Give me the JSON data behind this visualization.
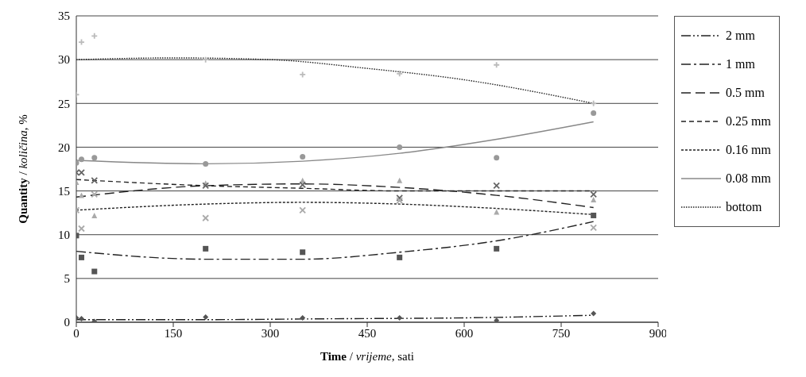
{
  "chart_data": {
    "type": "scatter",
    "xlabel": "Time / vrijeme, sati",
    "ylabel": "Quantity / količina, %",
    "xlim": [
      0,
      900
    ],
    "xticks": [
      0,
      150,
      300,
      450,
      600,
      750,
      900
    ],
    "ylim": [
      0,
      35
    ],
    "yticks": [
      0,
      5,
      10,
      15,
      20,
      25,
      30,
      35
    ],
    "grid": "y",
    "legend": "right",
    "x": [
      0,
      8,
      28,
      200,
      350,
      500,
      650,
      800
    ],
    "series": [
      {
        "color": "#555555",
        "marker": "diamond",
        "values": [
          0.5,
          0.4,
          0.1,
          0.6,
          0.5,
          0.5,
          0.2,
          1.0
        ]
      },
      {
        "color": "#555555",
        "marker": "square",
        "values": [
          9.9,
          7.4,
          5.8,
          8.4,
          8.0,
          7.4,
          8.4,
          12.2
        ]
      },
      {
        "color": "#aaaaaa",
        "marker": "triangle",
        "values": [
          16.0,
          14.5,
          12.2,
          15.9,
          16.2,
          16.2,
          12.6,
          14.0
        ]
      },
      {
        "color": "#666666",
        "marker": "x",
        "values": [
          17.1,
          17.1,
          16.2,
          15.6,
          15.7,
          14.2,
          15.6,
          14.6
        ]
      },
      {
        "color": "#aaaaaa",
        "marker": "x",
        "values": [
          12.8,
          10.7,
          14.6,
          11.9,
          12.8,
          13.9,
          null,
          10.8
        ]
      },
      {
        "color": "#999999",
        "marker": "circle",
        "values": [
          18.2,
          18.6,
          18.8,
          18.1,
          18.9,
          20.0,
          18.8,
          23.9
        ]
      },
      {
        "color": "#bbbbbb",
        "marker": "cross",
        "values": [
          26.0,
          32.0,
          32.7,
          30.0,
          28.3,
          28.4,
          29.4,
          25.0
        ]
      },
      {
        "type": "line",
        "name": "2 mm",
        "color": "#222222",
        "line_style": "dashdotdot",
        "x": [
          0,
          200,
          400,
          600,
          800
        ],
        "values": [
          0.3,
          0.3,
          0.4,
          0.5,
          0.8
        ]
      },
      {
        "type": "line",
        "name": "1 mm",
        "color": "#222222",
        "line_style": "dashdot",
        "x": [
          0,
          200,
          350,
          500,
          650,
          800
        ],
        "values": [
          8.1,
          7.2,
          7.2,
          8.0,
          9.3,
          11.5
        ]
      },
      {
        "type": "line",
        "name": "0.5 mm",
        "color": "#222222",
        "line_style": "longdash",
        "x": [
          0,
          200,
          350,
          500,
          650,
          800
        ],
        "values": [
          14.3,
          15.6,
          15.8,
          15.4,
          14.5,
          13.1
        ]
      },
      {
        "type": "line",
        "name": "0.25 mm",
        "color": "#222222",
        "line_style": "dashed",
        "x": [
          0,
          200,
          350,
          500,
          650,
          800
        ],
        "values": [
          16.3,
          15.6,
          15.3,
          15.0,
          15.0,
          15.0
        ]
      },
      {
        "type": "line",
        "name": "0.16 mm",
        "color": "#222222",
        "line_style": "shortdash",
        "x": [
          0,
          200,
          350,
          500,
          650,
          800
        ],
        "values": [
          12.8,
          13.5,
          13.7,
          13.5,
          13.0,
          12.3
        ]
      },
      {
        "type": "line",
        "name": "0.08 mm",
        "color": "#888888",
        "line_style": "solid",
        "x": [
          0,
          200,
          350,
          500,
          650,
          800
        ],
        "values": [
          18.5,
          18.1,
          18.4,
          19.3,
          20.9,
          22.9
        ]
      },
      {
        "type": "line",
        "name": "bottom",
        "color": "#222222",
        "line_style": "dotted",
        "x": [
          0,
          150,
          300,
          450,
          600,
          800
        ],
        "values": [
          30.0,
          30.2,
          30.0,
          29.0,
          27.7,
          25.0
        ]
      }
    ]
  }
}
